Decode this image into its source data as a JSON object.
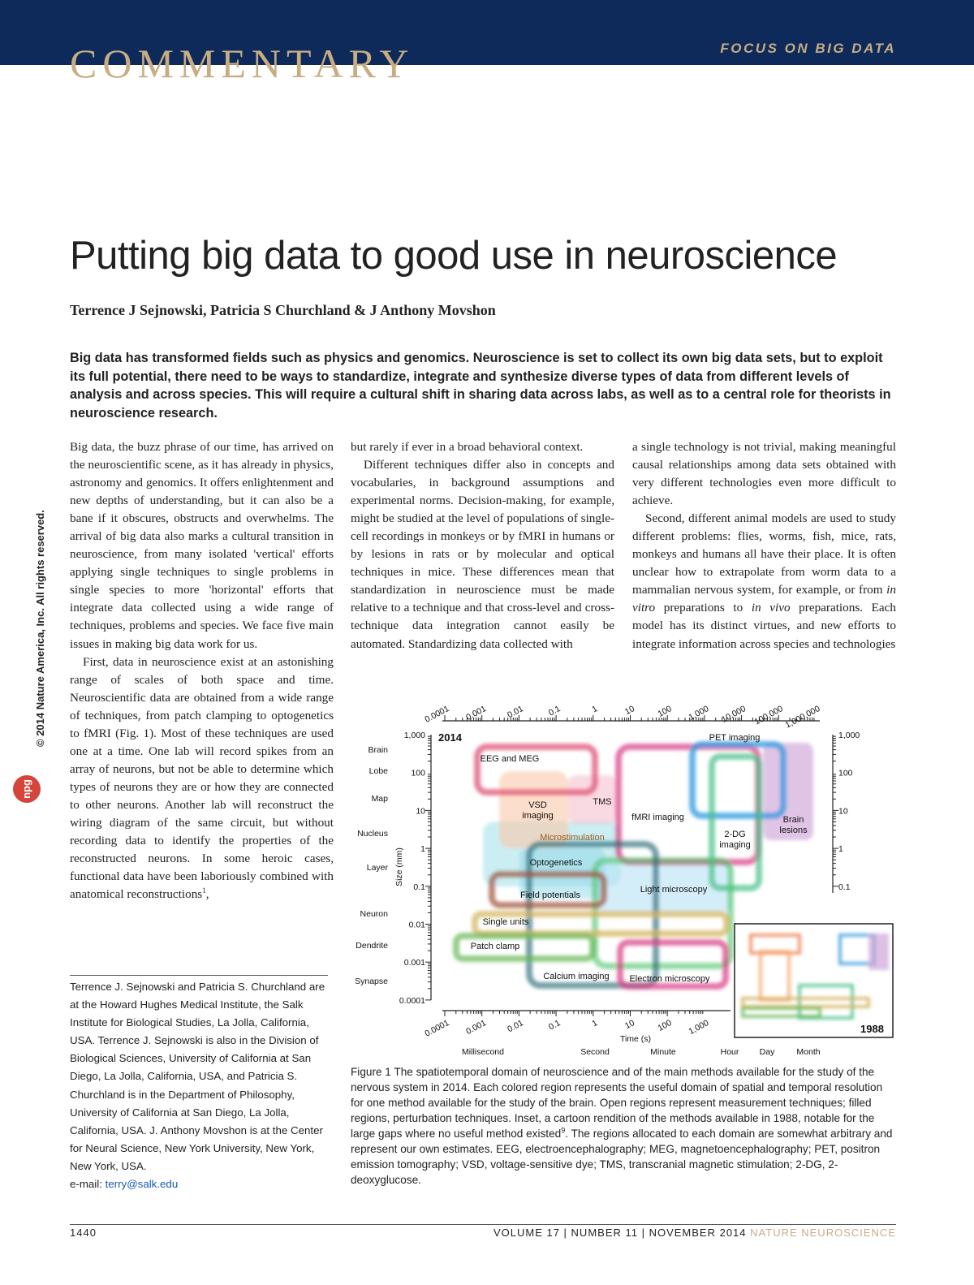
{
  "header": {
    "section": "COMMENTARY",
    "focus": "FOCUS ON BIG DATA"
  },
  "side": {
    "copyright": "© 2014 Nature America, Inc. All rights reserved.",
    "logo": "npg"
  },
  "article": {
    "title": "Putting big data to good use in neuroscience",
    "authors": "Terrence J Sejnowski, Patricia S Churchland & J Anthony Movshon",
    "abstract": "Big data has transformed fields such as physics and genomics. Neuroscience is set to collect its own big data sets, but to exploit its full potential, there need to be ways to standardize, integrate and synthesize diverse types of data from different levels of analysis and across species. This will require a cultural shift in sharing data across labs, as well as to a central role for theorists in neuroscience research."
  },
  "body": {
    "col1": {
      "p1": "Big data, the buzz phrase of our time, has arrived on the neuroscientific scene, as it has already in physics, astronomy and genomics. It offers enlightenment and new depths of understanding, but it can also be a bane if it obscures, obstructs and overwhelms. The arrival of big data also marks a cultural transition in neuroscience, from many isolated 'vertical' efforts applying single techniques to single problems in single species to more 'horizontal' efforts that integrate data collected using a wide range of techniques, problems and species. We face five main issues in making big data work for us.",
      "p2": "First, data in neuroscience exist at an astonishing range of scales of both space and time. Neuroscientific data are obtained from a wide range of techniques, from patch clamping to optogenetics to fMRI (Fig. 1). Most of these techniques are used one at a time. One lab will record spikes from an array of neurons, but not be able to determine which types of neurons they are or how they are connected to other neurons. Another lab will reconstruct the wiring diagram of the same circuit, but without recording data to identify the properties of the reconstructed neurons. In some heroic cases, functional data have been laboriously combined with anatomical reconstructions",
      "p2_sup": "1",
      "p2_tail": ","
    },
    "col2": {
      "p1": "but rarely if ever in a broad behavioral context.",
      "p2": "Different techniques differ also in concepts and vocabularies, in background assumptions and experimental norms. Decision-making, for example, might be studied at the level of populations of single-cell recordings in monkeys or by fMRI in humans or by lesions in rats or by molecular and optical techniques in mice. These differences mean that standardization in neuroscience must be made relative to a technique and that cross-level and cross-technique data integration cannot easily be automated. Standardizing data collected with"
    },
    "col3": {
      "p1": "a single technology is not trivial, making meaningful causal relationships among data sets obtained with very different technologies even more difficult to achieve.",
      "p2": [
        "Second, different animal models are used to study different problems: flies, worms, fish, mice, rats, monkeys and humans all have their place. It is often unclear how to extrapolate from worm data to a mammalian nervous system, for example, or from ",
        "in vitro",
        " preparations to ",
        "in vivo",
        " preparations. Each model has its distinct virtues, and new efforts to integrate information across species and technologies"
      ]
    }
  },
  "affiliation": {
    "text": "Terrence J. Sejnowski and Patricia S. Churchland are at the Howard Hughes Medical Institute, the Salk Institute for Biological Studies, La Jolla, California, USA. Terrence J. Sejnowski is also in the Division of Biological Sciences, University of California at San Diego, La Jolla, California, USA, and Patricia S. Churchland is in the Department of Philosophy, University of California at San Diego, La Jolla, California, USA. J. Anthony Movshon is at the Center for Neural Science, New York University, New York, New York, USA.",
    "email_label": "e-mail: ",
    "email": "terry@salk.edu"
  },
  "figure": {
    "year": "2014",
    "inset_year": "1988",
    "top_ticks": [
      "0.0001",
      "0.001",
      "0.01",
      "0.1",
      "1",
      "10",
      "100",
      "1,000",
      "10,000",
      "100,000",
      "1,000,000"
    ],
    "bottom_ticks": [
      "0.0001",
      "0.001",
      "0.01",
      "0.1",
      "1",
      "10",
      "100",
      "1,000"
    ],
    "left_ticks": [
      "1,000",
      "100",
      "10",
      "1",
      "0.1",
      "0.01",
      "0.001",
      "0.0001"
    ],
    "right_ticks": [
      "1,000",
      "100",
      "10",
      "1",
      "0.1"
    ],
    "x_label": "Time (s)",
    "y_label": "Size (mm)",
    "time_units": [
      "Millisecond",
      "Second",
      "Minute",
      "Hour",
      "Day",
      "Month"
    ],
    "scales": [
      "Brain",
      "Lobe",
      "Map",
      "Nucleus",
      "Layer",
      "Neuron",
      "Dendrite",
      "Synapse"
    ],
    "regions": [
      "EEG and MEG",
      "VSD imaging",
      "TMS",
      "fMRI imaging",
      "PET imaging",
      "Brain lesions",
      "2-DG imaging",
      "Microstimulation",
      "Optogenetics",
      "Field potentials",
      "Light microscopy",
      "Single units",
      "Patch clamp",
      "Calcium imaging",
      "Electron microscopy"
    ]
  },
  "caption": {
    "label": "Figure 1",
    "text1": " The spatiotemporal domain of neuroscience and of the main methods available for the study of the nervous system in 2014. Each colored region represents the useful domain of spatial and temporal resolution for one method available for the study of the brain. Open regions represent measurement techniques; filled regions, perturbation techniques. Inset, a cartoon rendition of the methods available in 1988, notable for the large gaps where no useful method existed",
    "sup": "9",
    "text2": ". The regions allocated to each domain are somewhat arbitrary and represent our own estimates. EEG, electroencephalography; MEG, magnetoencephalography; PET, positron emission tomography; VSD, voltage-sensitive dye; TMS, transcranial magnetic stimulation; 2-DG, 2-deoxyglucose."
  },
  "footer": {
    "page": "1440",
    "issue": "VOLUME 17 | NUMBER 11 | NOVEMBER 2014",
    "journal": "NATURE NEUROSCIENCE"
  }
}
